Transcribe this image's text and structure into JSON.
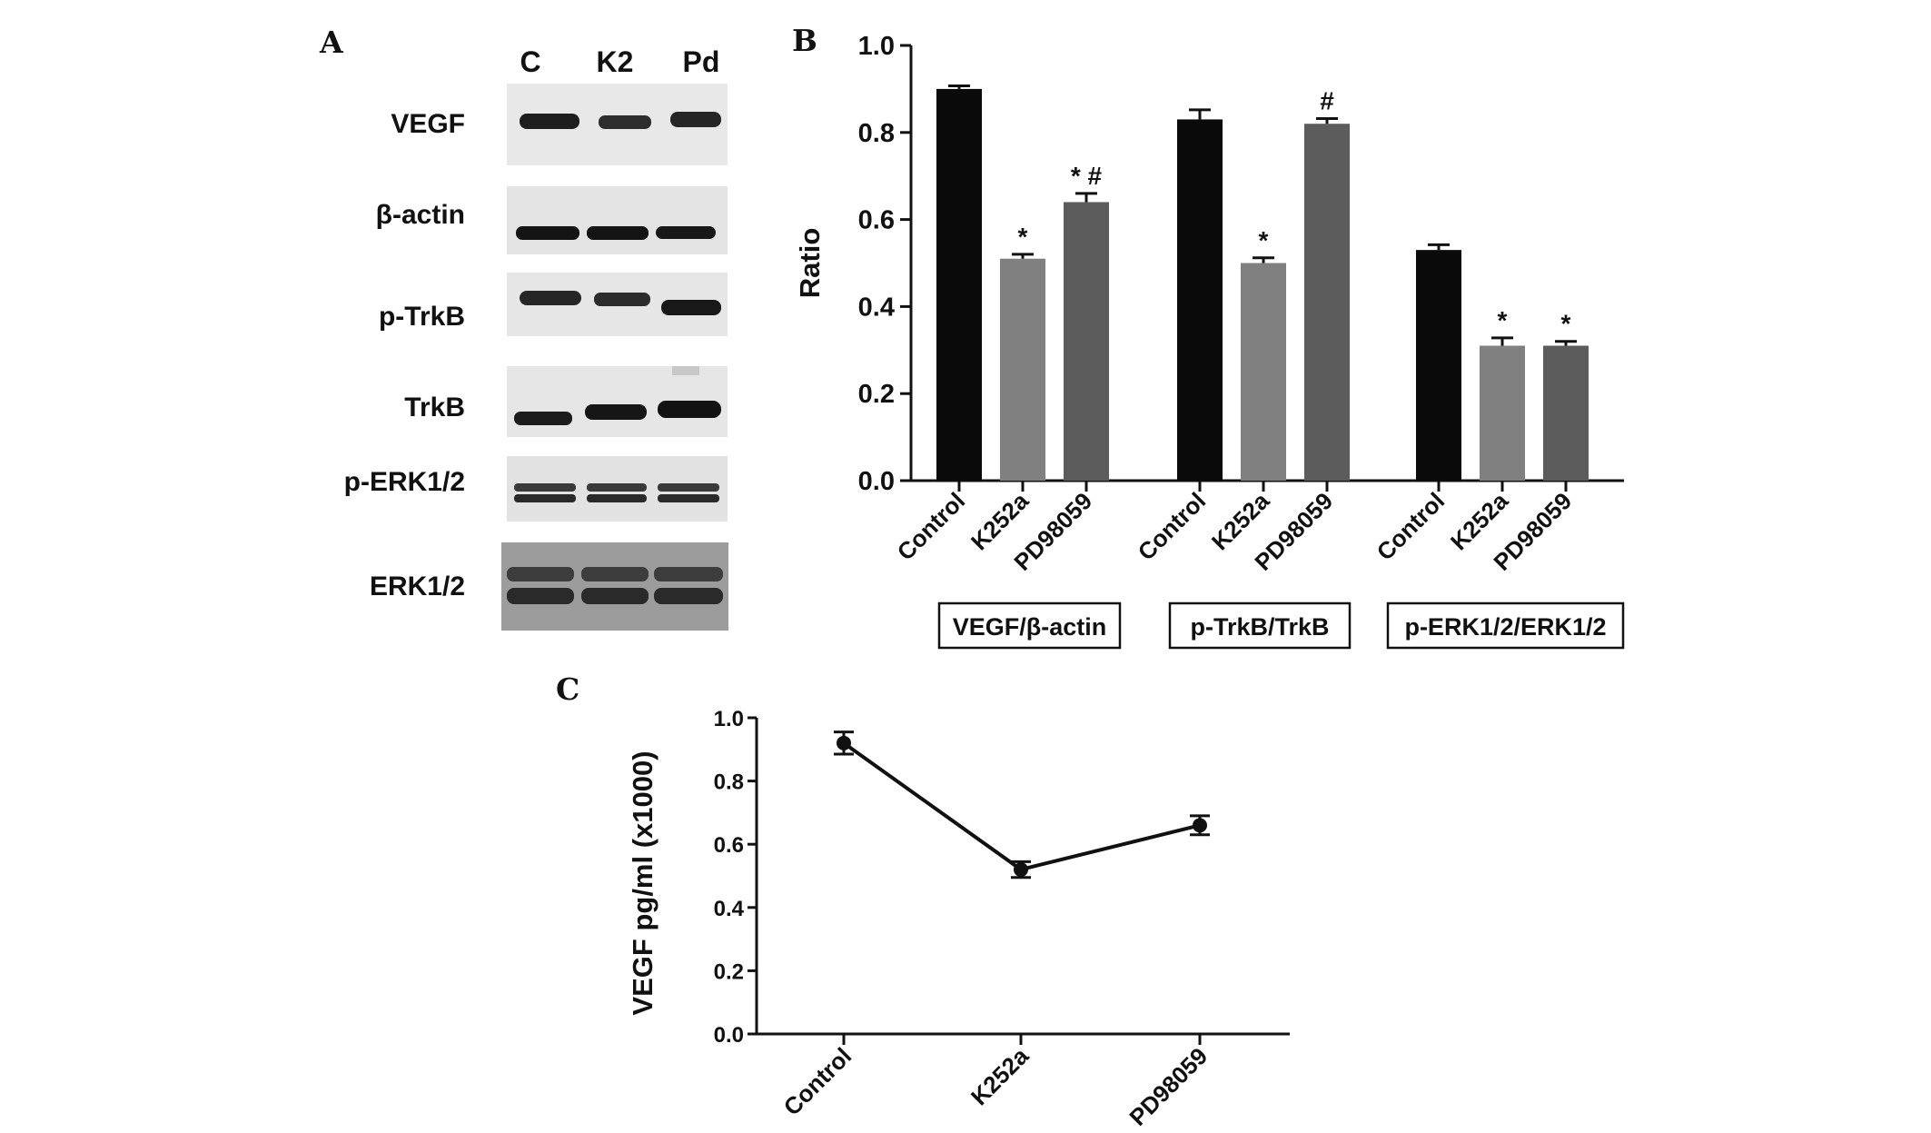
{
  "panel_letters": {
    "a": "A",
    "b": "B",
    "c": "C"
  },
  "blot": {
    "lanes": [
      "C",
      "K2",
      "Pd"
    ],
    "rows": [
      "VEGF",
      "β-actin",
      "p-TrkB",
      "TrkB",
      "p-ERK1/2",
      "ERK1/2"
    ]
  },
  "chart_data": [
    {
      "type": "bar",
      "ylabel": "Ratio",
      "ylim": [
        0,
        1.0
      ],
      "yticks": [
        "0.0",
        "0.2",
        "0.4",
        "0.6",
        "0.8",
        "1.0"
      ],
      "categories": [
        "Control",
        "K252a",
        "PD98059"
      ],
      "groups": [
        {
          "label": "VEGF/β-actin",
          "values": [
            0.9,
            0.51,
            0.64
          ],
          "errors": [
            0.007,
            0.01,
            0.02
          ],
          "annotations": [
            "",
            "*",
            "* #"
          ]
        },
        {
          "label": "p-TrkB/TrkB",
          "values": [
            0.83,
            0.5,
            0.82
          ],
          "errors": [
            0.022,
            0.012,
            0.012
          ],
          "annotations": [
            "",
            "*",
            "#"
          ]
        },
        {
          "label": "p-ERK1/2/ERK1/2",
          "values": [
            0.53,
            0.31,
            0.31
          ],
          "errors": [
            0.012,
            0.018,
            0.01
          ],
          "annotations": [
            "",
            "*",
            "*"
          ]
        }
      ],
      "bar_colors": [
        "#0a0a0a",
        "#808080",
        "#5c5c5c"
      ],
      "grid": false
    },
    {
      "type": "line",
      "ylabel": "VEGF pg/ml (x1000)",
      "ylim": [
        0,
        1.0
      ],
      "yticks": [
        "0.0",
        "0.2",
        "0.4",
        "0.6",
        "0.8",
        "1.0"
      ],
      "categories": [
        "Control",
        "K252a",
        "PD98059"
      ],
      "values": [
        0.92,
        0.52,
        0.66
      ],
      "errors": [
        0.035,
        0.025,
        0.03
      ],
      "grid": false
    }
  ]
}
